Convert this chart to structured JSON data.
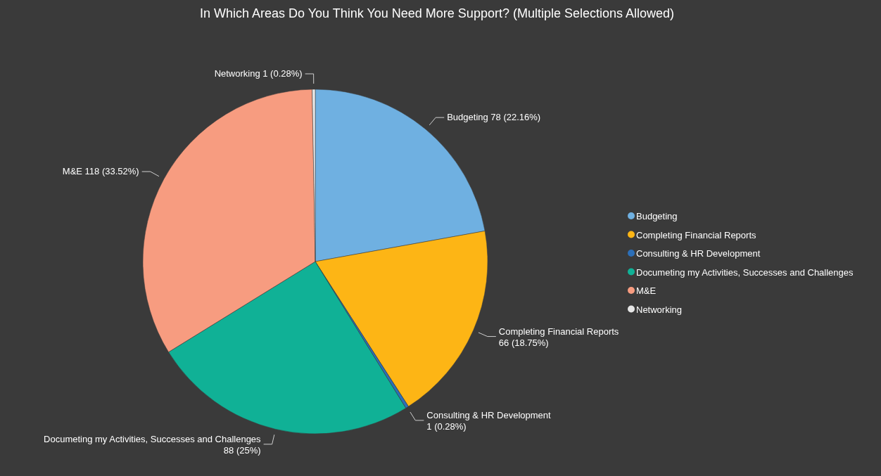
{
  "chart_data": {
    "type": "pie",
    "title": "In Which Areas Do You Think You Need More Support? (Multiple Selections Allowed)",
    "categories": [
      "Budgeting",
      "Completing Financial Reports",
      "Consulting & HR Development",
      "Documeting my Activities, Successes and Challenges",
      "M&E",
      "Networking"
    ],
    "values": [
      78,
      66,
      1,
      88,
      118,
      1
    ],
    "value_labels": [
      "78 (22.16%)",
      "66 (18.75%)",
      "1 (0.28%)",
      "88 (25%)",
      "118 (33.52%)",
      "1 (0.28%)"
    ],
    "colors": [
      "#6fb0e1",
      "#fdb515",
      "#2c6fb8",
      "#10b196",
      "#f79c80",
      "#e6e6e6"
    ],
    "legend": "right"
  }
}
